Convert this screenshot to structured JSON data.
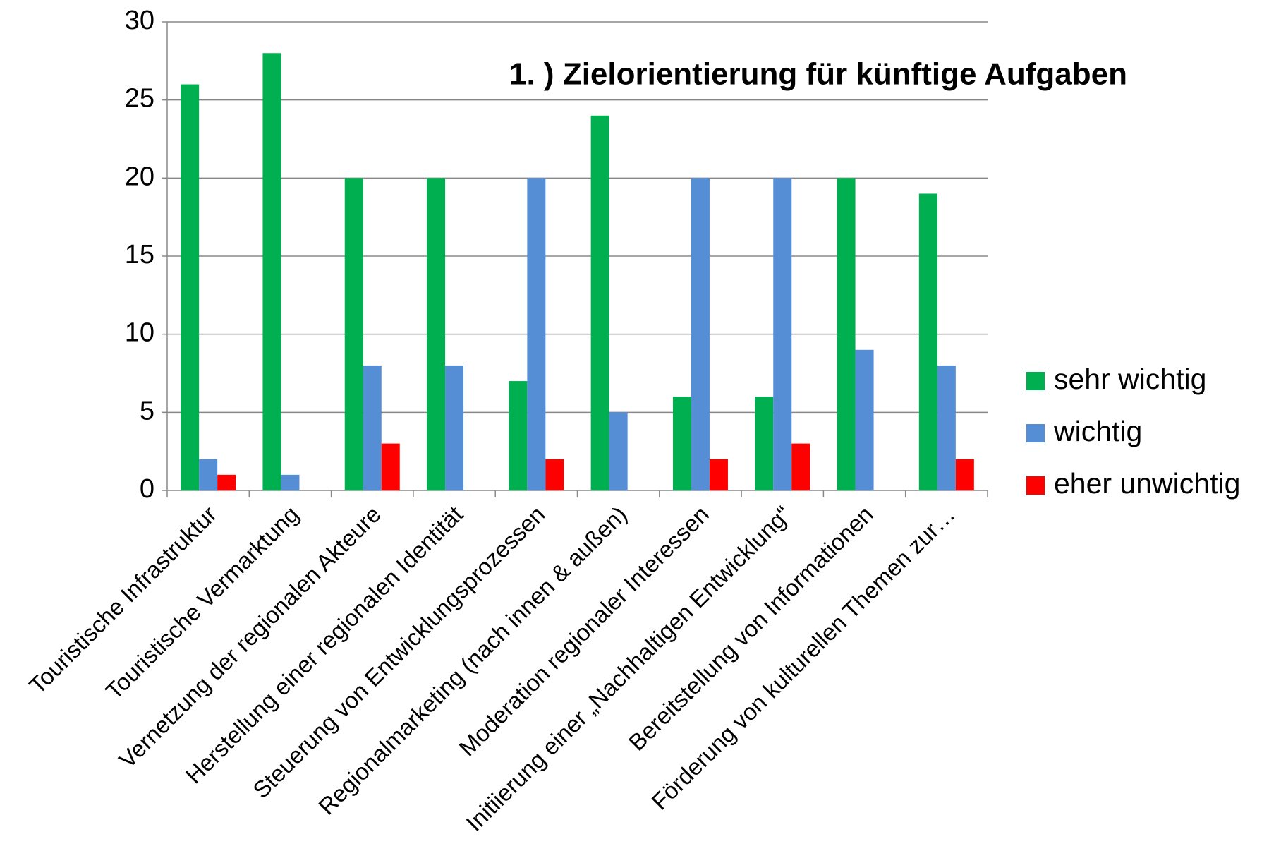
{
  "chart_data": {
    "type": "bar",
    "title": "1. ) Zielorientierung für künftige Aufgaben",
    "categories": [
      "Touristische Infrastruktur",
      "Touristische Vermarktung",
      "Vernetzung der regionalen Akteure",
      "Herstellung einer regionalen Identität",
      "Steuerung von Entwicklungsprozessen",
      "Regionalmarketing (nach innen & außen)",
      "Moderation regionaler Interessen",
      "Initiierung einer „Nachhaltigen Entwicklung“",
      "Bereitstellung von Informationen",
      "Förderung von kulturellen Themen zur…"
    ],
    "series": [
      {
        "name": "sehr wichtig",
        "color": "#00b050",
        "values": [
          26,
          28,
          20,
          20,
          7,
          24,
          6,
          6,
          20,
          19
        ]
      },
      {
        "name": "wichtig",
        "color": "#558ed5",
        "values": [
          2,
          1,
          8,
          8,
          20,
          5,
          20,
          20,
          9,
          8
        ]
      },
      {
        "name": "eher unwichtig",
        "color": "#ff0000",
        "values": [
          1,
          0,
          3,
          0,
          2,
          0,
          2,
          3,
          0,
          2
        ]
      }
    ],
    "ylim": [
      0,
      30
    ],
    "yticks": [
      0,
      5,
      10,
      15,
      20,
      25,
      30
    ],
    "grid": true,
    "legend": "right"
  }
}
